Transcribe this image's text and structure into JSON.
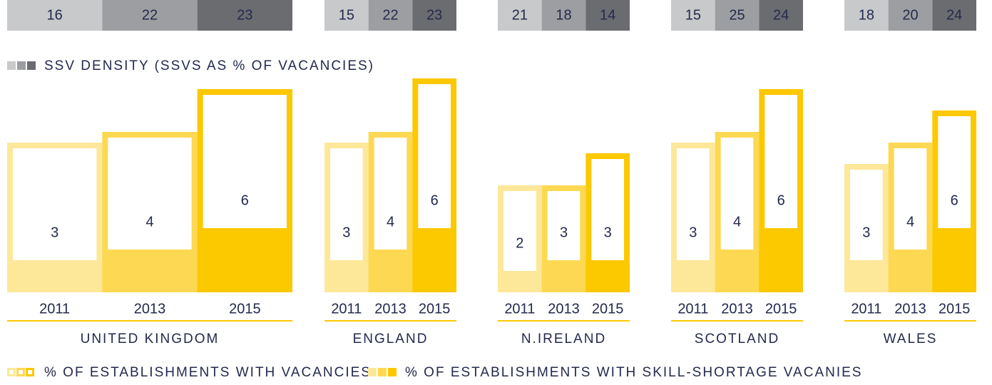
{
  "chart_data": {
    "type": "grouped-bar",
    "density_legend": "SSV DENSITY (SSVS AS % OF VACANCIES)",
    "vacancies_legend": "% OF ESTABLISHMENTS WITH VACANCIES",
    "shortage_legend": "% OF ESTABLISHMENTS WITH SKILL-SHORTAGE VACANIES",
    "year_colors": [
      "#fde89a",
      "#fdd852",
      "#fcc800"
    ],
    "density_colors": [
      "#c8c9cb",
      "#9d9ea1",
      "#6b6c70"
    ],
    "groups": [
      {
        "name": "UNITED KINGDOM",
        "years": [
          "2011",
          "2013",
          "2015"
        ],
        "ssv_density": [
          16,
          22,
          23
        ],
        "vacancies": [
          14,
          15,
          19
        ],
        "skill_shortage": [
          3,
          4,
          6
        ]
      },
      {
        "name": "ENGLAND",
        "years": [
          "2011",
          "2013",
          "2015"
        ],
        "ssv_density": [
          15,
          22,
          23
        ],
        "vacancies": [
          14,
          15,
          20
        ],
        "skill_shortage": [
          3,
          4,
          6
        ]
      },
      {
        "name": "N.IRELAND",
        "years": [
          "2011",
          "2013",
          "2015"
        ],
        "ssv_density": [
          21,
          18,
          14
        ],
        "vacancies": [
          10,
          10,
          13
        ],
        "skill_shortage": [
          2,
          3,
          3
        ]
      },
      {
        "name": "SCOTLAND",
        "years": [
          "2011",
          "2013",
          "2015"
        ],
        "ssv_density": [
          15,
          25,
          24
        ],
        "vacancies": [
          14,
          15,
          19
        ],
        "skill_shortage": [
          3,
          4,
          6
        ]
      },
      {
        "name": "WALES",
        "years": [
          "2011",
          "2013",
          "2015"
        ],
        "ssv_density": [
          18,
          20,
          24
        ],
        "vacancies": [
          12,
          14,
          17
        ],
        "skill_shortage": [
          3,
          4,
          6
        ]
      }
    ]
  }
}
